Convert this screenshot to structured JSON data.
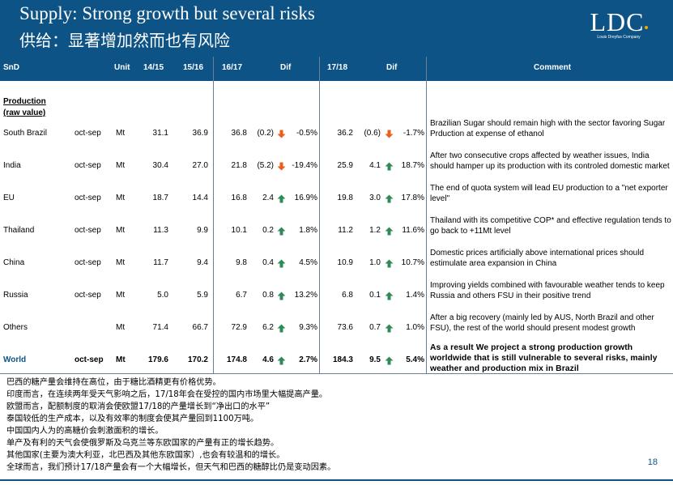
{
  "header": {
    "title_en": "Supply: Strong growth but several risks",
    "title_cn": "供给：显著增加然而也有风险",
    "logo_text": "LDC",
    "logo_sub": "Louis Dreyfus Company"
  },
  "colors": {
    "brand_blue": "#0e5385",
    "arrow_up": "#2e8b57",
    "arrow_down": "#e8601c"
  },
  "table": {
    "headers": {
      "snd": "SnD",
      "unit": "Unit",
      "c1415": "14/15",
      "c1516": "15/16",
      "c1617": "16/17",
      "dif1": "Dif",
      "c1718": "17/18",
      "dif2": "Dif",
      "comment": "Comment"
    },
    "section_title_1": "Production",
    "section_title_2": "(raw value)",
    "rows": [
      {
        "name": "South Brazil",
        "period": "oct-sep",
        "unit": "Mt",
        "v1415": "31.1",
        "v1516": "36.9",
        "v1617": "36.8",
        "dif1_abs": "(0.2)",
        "dif1_dir": "down",
        "dif1_pct": "-0.5%",
        "v1718": "36.2",
        "dif2_abs": "(0.6)",
        "dif2_dir": "down",
        "dif2_pct": "-1.7%",
        "comment": "Brazilian Sugar should remain high with the sector favoring Sugar Prduction at expense of ethanol"
      },
      {
        "name": "India",
        "period": "oct-sep",
        "unit": "Mt",
        "v1415": "30.4",
        "v1516": "27.0",
        "v1617": "21.8",
        "dif1_abs": "(5.2)",
        "dif1_dir": "down",
        "dif1_pct": "-19.4%",
        "v1718": "25.9",
        "dif2_abs": "4.1",
        "dif2_dir": "up",
        "dif2_pct": "18.7%",
        "comment": "After two consecutive crops affected by weather issues, India should hamper up its production with its controled domestic market"
      },
      {
        "name": "EU",
        "period": "oct-sep",
        "unit": "Mt",
        "v1415": "18.7",
        "v1516": "14.4",
        "v1617": "16.8",
        "dif1_abs": "2.4",
        "dif1_dir": "up",
        "dif1_pct": "16.9%",
        "v1718": "19.8",
        "dif2_abs": "3.0",
        "dif2_dir": "up",
        "dif2_pct": "17.8%",
        "comment": "The end of quota system will lead EU production to a \"net exporter level\""
      },
      {
        "name": "Thailand",
        "period": "oct-sep",
        "unit": "Mt",
        "v1415": "11.3",
        "v1516": "9.9",
        "v1617": "10.1",
        "dif1_abs": "0.2",
        "dif1_dir": "up",
        "dif1_pct": "1.8%",
        "v1718": "11.2",
        "dif2_abs": "1.2",
        "dif2_dir": "up",
        "dif2_pct": "11.6%",
        "comment": "Thailand with its competitive COP* and effective regulation tends to go back to +11Mt level"
      },
      {
        "name": "China",
        "period": "oct-sep",
        "unit": "Mt",
        "v1415": "11.7",
        "v1516": "9.4",
        "v1617": "9.8",
        "dif1_abs": "0.4",
        "dif1_dir": "up",
        "dif1_pct": "4.5%",
        "v1718": "10.9",
        "dif2_abs": "1.0",
        "dif2_dir": "up",
        "dif2_pct": "10.7%",
        "comment": "Domestic prices artificially  above international prices should estimulate area expansion in China"
      },
      {
        "name": "Russia",
        "period": "oct-sep",
        "unit": "Mt",
        "v1415": "5.0",
        "v1516": "5.9",
        "v1617": "6.7",
        "dif1_abs": "0.8",
        "dif1_dir": "up",
        "dif1_pct": "13.2%",
        "v1718": "6.8",
        "dif2_abs": "0.1",
        "dif2_dir": "up",
        "dif2_pct": "1.4%",
        "comment": "Improving yields combined with favourable weather tends to keep Russia and others FSU in their positive trend"
      },
      {
        "name": "Others",
        "period": "",
        "unit": "Mt",
        "v1415": "71.4",
        "v1516": "66.7",
        "v1617": "72.9",
        "dif1_abs": "6.2",
        "dif1_dir": "up",
        "dif1_pct": "9.3%",
        "v1718": "73.6",
        "dif2_abs": "0.7",
        "dif2_dir": "up",
        "dif2_pct": "1.0%",
        "comment": "After a big recovery (mainly led by AUS, North Brazil and other FSU), the rest of the world should present modest growth"
      }
    ],
    "total": {
      "name": "World",
      "period": "oct-sep",
      "unit": "Mt",
      "v1415": "179.6",
      "v1516": "170.2",
      "v1617": "174.8",
      "dif1_abs": "4.6",
      "dif1_dir": "up",
      "dif1_pct": "2.7%",
      "v1718": "184.3",
      "dif2_abs": "9.5",
      "dif2_dir": "up",
      "dif2_pct": "5.4%",
      "comment": "As a result We project a strong production growth worldwide that is still vulnerable to several risks, mainly weather and production mix in Brazil"
    }
  },
  "notes": [
    "巴西的糖产量会维持在高位，由于糖比酒精更有价格优势。",
    "印度而言，在连续两年受天气影响之后，17/18年会在受控的国内市场里大幅提高产量。",
    "欧盟而言，配额制度的取消会使欧盟17/18的产量增长到“净出口的水平”",
    "泰国较低的生产成本，以及有效率的制度会使其产量回到1100万吨。",
    "中国国内人为的高糖价会刺激面积的增长。",
    "单产及有利的天气会使俄罗斯及乌克兰等东欧国家的产量有正的增长趋势。",
    "其他国家(主要为澳大利亚，北巴西及其他东欧国家）,也会有较温和的增长。",
    "全球而言，我们预计17/18产量会有一个大幅增长，但天气和巴西的糖醇比仍是变动因素。"
  ],
  "page_number": "18"
}
